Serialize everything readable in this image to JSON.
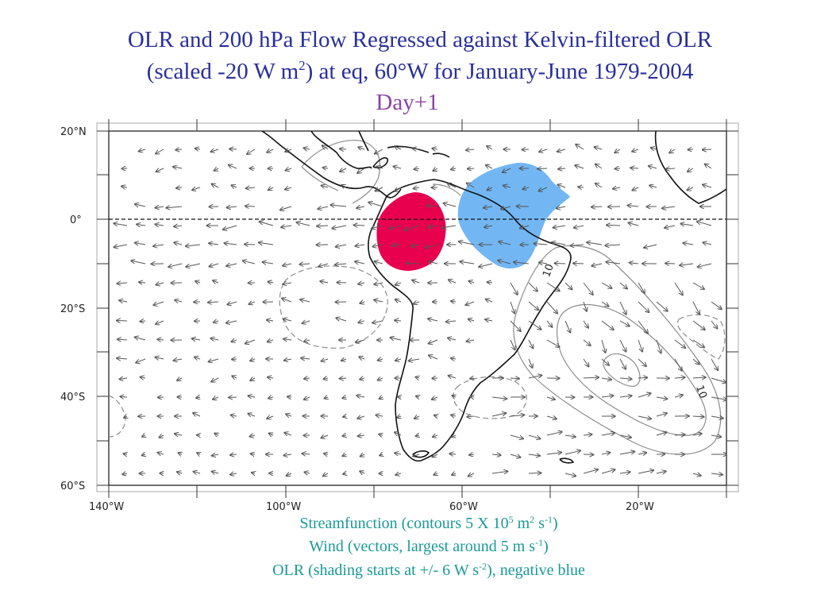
{
  "header": {
    "title_line1": "OLR and 200 hPa Flow Regressed against Kelvin-filtered OLR",
    "title_line2_pre": "(scaled -20 W m",
    "title_line2_sup": "2",
    "title_line2_post": ") at eq, 60°W for January-June 1979-2004",
    "subtitle": "Day+1"
  },
  "map": {
    "lat_labels": [
      "20°N",
      "0°",
      "20°S",
      "40°S",
      "60°S"
    ],
    "lon_labels": [
      "140°W",
      "100°W",
      "60°W",
      "20°W"
    ],
    "contour_labels": [
      "10",
      "10"
    ],
    "colors": {
      "positive_olr": "#e8004f",
      "negative_olr": "#72b7f4",
      "contour": "#8c8c8c",
      "coast": "#111111"
    }
  },
  "caption": {
    "line1_a": "Streamfunction (contours 5 X 10",
    "line1_sup1": "5",
    "line1_b": " m",
    "line1_sup2": "2",
    "line1_c": " s",
    "line1_sup3": "-1",
    "line1_d": ")",
    "line2_a": "Wind (vectors, largest around 5 m s",
    "line2_sup": "-1",
    "line2_b": ")",
    "line3_a": "OLR (shading starts at +/- 6 W s",
    "line3_sup": "-2",
    "line3_b": "), negative blue"
  }
}
